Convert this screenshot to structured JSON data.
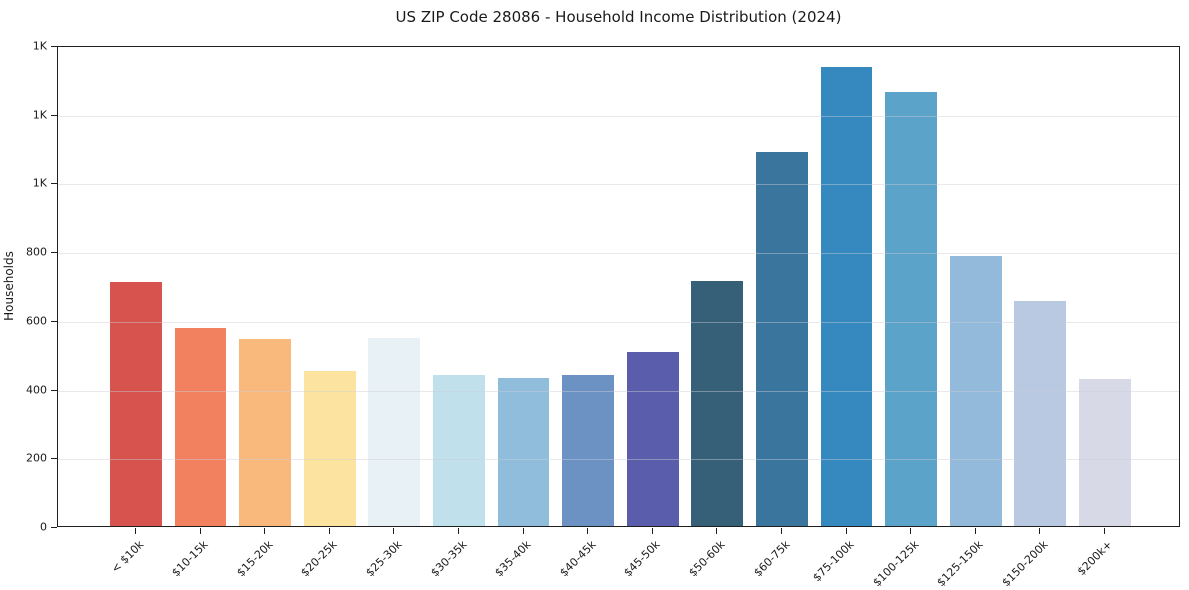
{
  "figure": {
    "background": "#ffffff",
    "frame_color": "#1f1f1f",
    "grid_color": "rgba(205,205,214,0.45)"
  },
  "chart_data": {
    "type": "bar",
    "title": "US ZIP Code 28086 - Household Income Distribution (2024)",
    "xlabel": "",
    "ylabel": "Households",
    "categories": [
      "< $10k",
      "$10-15k",
      "$15-20k",
      "$20-25k",
      "$25-30k",
      "$30-35k",
      "$35-40k",
      "$40-45k",
      "$45-50k",
      "$50-60k",
      "$60-75k",
      "$75-100k",
      "$100-125k",
      "$125-150k",
      "$150-200k",
      "$200k+"
    ],
    "values": [
      710,
      575,
      545,
      450,
      548,
      441,
      432,
      440,
      507,
      712,
      1090,
      1335,
      1262,
      785,
      655,
      428
    ],
    "bar_colors": [
      "#d6534e",
      "#f28160",
      "#fab97c",
      "#fce4a0",
      "#e7f1f6",
      "#c0e1ec",
      "#8fbddb",
      "#6c92c4",
      "#5a5dab",
      "#366078",
      "#3a759d",
      "#3589bf",
      "#5ba3c9",
      "#93badb",
      "#b9c9e2",
      "#d8d9e7"
    ],
    "ylim": [
      0,
      1400
    ],
    "ytick_values": [
      0,
      200,
      400,
      600,
      800,
      1000,
      1200,
      1400
    ],
    "ytick_labels": [
      "0",
      "200",
      "400",
      "600",
      "800",
      "1K",
      "1K",
      "1K"
    ],
    "grid": "horizontal",
    "x_tick_rotation": 45,
    "legend": "none"
  }
}
